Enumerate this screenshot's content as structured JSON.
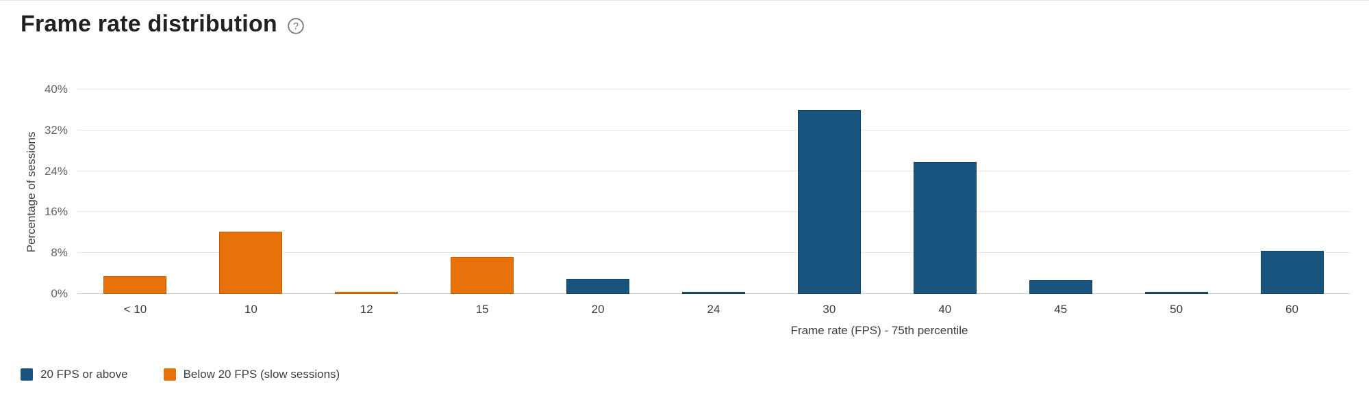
{
  "header": {
    "title": "Frame rate distribution",
    "help_icon": "question-mark-circle-icon"
  },
  "chart_data": {
    "type": "bar",
    "title": "Frame rate distribution",
    "xlabel": "Frame rate (FPS) - 75th percentile",
    "ylabel": "Percentage of sessions",
    "ylim": [
      0,
      40
    ],
    "yticks": [
      0,
      8,
      16,
      24,
      32,
      40
    ],
    "ytick_suffix": "%",
    "grid": true,
    "legend_position": "bottom-left",
    "categories": [
      "< 10",
      "10",
      "12",
      "15",
      "20",
      "24",
      "30",
      "40",
      "45",
      "50",
      "60"
    ],
    "series": [
      {
        "name": "20 FPS or above",
        "color": "#18547d"
      },
      {
        "name": "Below 20 FPS (slow sessions)",
        "color": "#e8710a"
      }
    ],
    "bars": [
      {
        "category": "< 10",
        "value": 3.5,
        "series": "Below 20 FPS (slow sessions)"
      },
      {
        "category": "10",
        "value": 12.2,
        "series": "Below 20 FPS (slow sessions)"
      },
      {
        "category": "12",
        "value": 0.4,
        "series": "Below 20 FPS (slow sessions)"
      },
      {
        "category": "15",
        "value": 7.2,
        "series": "Below 20 FPS (slow sessions)"
      },
      {
        "category": "20",
        "value": 2.9,
        "series": "20 FPS or above"
      },
      {
        "category": "24",
        "value": 0.4,
        "series": "20 FPS or above"
      },
      {
        "category": "30",
        "value": 36.0,
        "series": "20 FPS or above"
      },
      {
        "category": "40",
        "value": 25.8,
        "series": "20 FPS or above"
      },
      {
        "category": "45",
        "value": 2.7,
        "series": "20 FPS or above"
      },
      {
        "category": "50",
        "value": 0.4,
        "series": "20 FPS or above"
      },
      {
        "category": "60",
        "value": 8.4,
        "series": "20 FPS or above"
      }
    ]
  },
  "legend": {
    "items": [
      {
        "label": "20 FPS or above",
        "color": "#18547d"
      },
      {
        "label": "Below 20 FPS (slow sessions)",
        "color": "#e8710a"
      }
    ]
  }
}
